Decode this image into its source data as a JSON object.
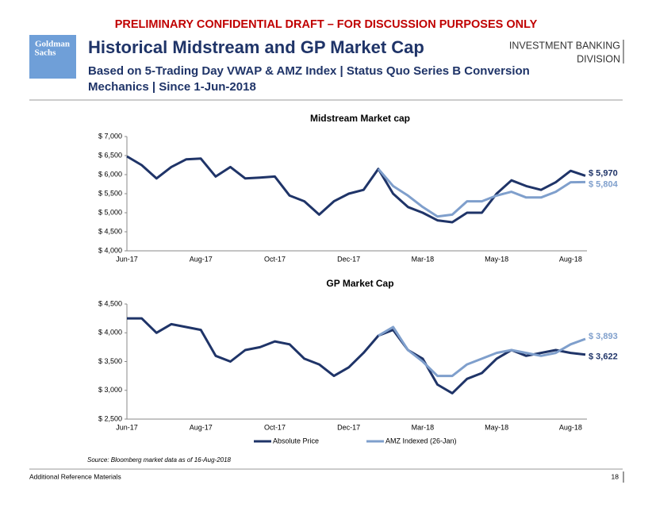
{
  "header": {
    "banner": "PRELIMINARY CONFIDENTIAL DRAFT – FOR DISCUSSION PURPOSES ONLY",
    "logo": [
      "Goldman",
      "Sachs"
    ],
    "title": "Historical Midstream and GP Market Cap",
    "subtitle": [
      "Based on 5-Trading Day VWAP & AMZ Index | Status Quo Series B Conversion",
      "Mechanics | Since 1-Jun-2018"
    ],
    "division": [
      "INVESTMENT BANKING",
      "DIVISION"
    ]
  },
  "chart_data": [
    {
      "type": "line",
      "title": "Midstream Market cap",
      "categories": [
        "Jun-17",
        null,
        null,
        null,
        null,
        "Aug-17",
        null,
        null,
        null,
        null,
        "Oct-17",
        null,
        null,
        null,
        null,
        "Dec-17",
        null,
        null,
        null,
        null,
        "Mar-18",
        null,
        null,
        null,
        null,
        "May-18",
        null,
        null,
        null,
        null,
        "Aug-18",
        null
      ],
      "series": [
        {
          "name": "Absolute Price",
          "color": "#1f3468",
          "values": [
            6480,
            6250,
            5900,
            6200,
            6400,
            6420,
            5950,
            6200,
            5900,
            5920,
            5950,
            5450,
            5300,
            4950,
            5300,
            5500,
            5600,
            6150,
            5500,
            5150,
            5000,
            4800,
            4750,
            5000,
            5000,
            5500,
            5850,
            5700,
            5600,
            5800,
            6100,
            5970
          ],
          "value_labels": [
            null,
            null,
            null,
            null,
            null,
            null,
            null,
            null,
            null,
            null,
            null,
            null,
            null,
            null,
            null,
            null,
            null,
            null,
            null,
            null,
            null,
            null,
            null,
            null,
            null,
            null,
            null,
            null,
            null,
            null,
            null,
            "$ 5,970"
          ]
        },
        {
          "name": "AMZ Indexed (26-Jan)",
          "color": "#7f9fcc",
          "values": [
            null,
            null,
            null,
            null,
            null,
            null,
            null,
            null,
            null,
            null,
            null,
            null,
            null,
            null,
            null,
            null,
            null,
            6150,
            5700,
            5450,
            5150,
            4900,
            4950,
            5300,
            5300,
            5450,
            5550,
            5400,
            5400,
            5550,
            5800,
            5804
          ],
          "value_labels": [
            null,
            null,
            null,
            null,
            null,
            null,
            null,
            null,
            null,
            null,
            null,
            null,
            null,
            null,
            null,
            null,
            null,
            null,
            null,
            null,
            null,
            null,
            null,
            null,
            null,
            null,
            null,
            null,
            null,
            null,
            null,
            "$ 5,804"
          ]
        }
      ],
      "ylim": [
        4000,
        7000
      ],
      "yticks": [
        {
          "value": 4000,
          "label": "$ 4,000"
        },
        {
          "value": 4500,
          "label": "$ 4,500"
        },
        {
          "value": 5000,
          "label": "$ 5,000"
        },
        {
          "value": 5500,
          "label": "$ 5,500"
        },
        {
          "value": 6000,
          "label": "$ 6,000"
        },
        {
          "value": 6500,
          "label": "$ 6,500"
        },
        {
          "value": 7000,
          "label": "$ 7,000"
        }
      ]
    },
    {
      "type": "line",
      "title": "GP Market Cap",
      "categories": [
        "Jun-17",
        null,
        null,
        null,
        null,
        "Aug-17",
        null,
        null,
        null,
        null,
        "Oct-17",
        null,
        null,
        null,
        null,
        "Dec-17",
        null,
        null,
        null,
        null,
        "Mar-18",
        null,
        null,
        null,
        null,
        "May-18",
        null,
        null,
        null,
        null,
        "Aug-18",
        null
      ],
      "series": [
        {
          "name": "Absolute Price",
          "color": "#1f3468",
          "values": [
            4250,
            4250,
            4000,
            4150,
            4100,
            4050,
            3600,
            3500,
            3700,
            3750,
            3850,
            3800,
            3550,
            3450,
            3250,
            3400,
            3650,
            3950,
            4050,
            3700,
            3550,
            3100,
            2950,
            3200,
            3300,
            3550,
            3700,
            3600,
            3650,
            3700,
            3650,
            3622
          ],
          "value_labels": [
            null,
            null,
            null,
            null,
            null,
            null,
            null,
            null,
            null,
            null,
            null,
            null,
            null,
            null,
            null,
            null,
            null,
            null,
            null,
            null,
            null,
            null,
            null,
            null,
            null,
            null,
            null,
            null,
            null,
            null,
            null,
            "$ 3,622"
          ]
        },
        {
          "name": "AMZ Indexed (26-Jan)",
          "color": "#7f9fcc",
          "values": [
            null,
            null,
            null,
            null,
            null,
            null,
            null,
            null,
            null,
            null,
            null,
            null,
            null,
            null,
            null,
            null,
            null,
            3950,
            4100,
            3700,
            3500,
            3250,
            3250,
            3450,
            3550,
            3650,
            3700,
            3650,
            3600,
            3650,
            3800,
            3893
          ],
          "value_labels": [
            null,
            null,
            null,
            null,
            null,
            null,
            null,
            null,
            null,
            null,
            null,
            null,
            null,
            null,
            null,
            null,
            null,
            null,
            null,
            null,
            null,
            null,
            null,
            null,
            null,
            null,
            null,
            null,
            null,
            null,
            null,
            "$ 3,893"
          ]
        }
      ],
      "ylim": [
        2500,
        4500
      ],
      "yticks": [
        {
          "value": 2500,
          "label": "$ 2,500"
        },
        {
          "value": 3000,
          "label": "$ 3,000"
        },
        {
          "value": 3500,
          "label": "$ 3,500"
        },
        {
          "value": 4000,
          "label": "$ 4,000"
        },
        {
          "value": 4500,
          "label": "$ 4,500"
        }
      ],
      "legend": "bottom"
    }
  ],
  "source": "Source: Bloomberg market data as of 16-Aug-2018",
  "footer": {
    "section": "Additional Reference Materials",
    "page": "18"
  }
}
